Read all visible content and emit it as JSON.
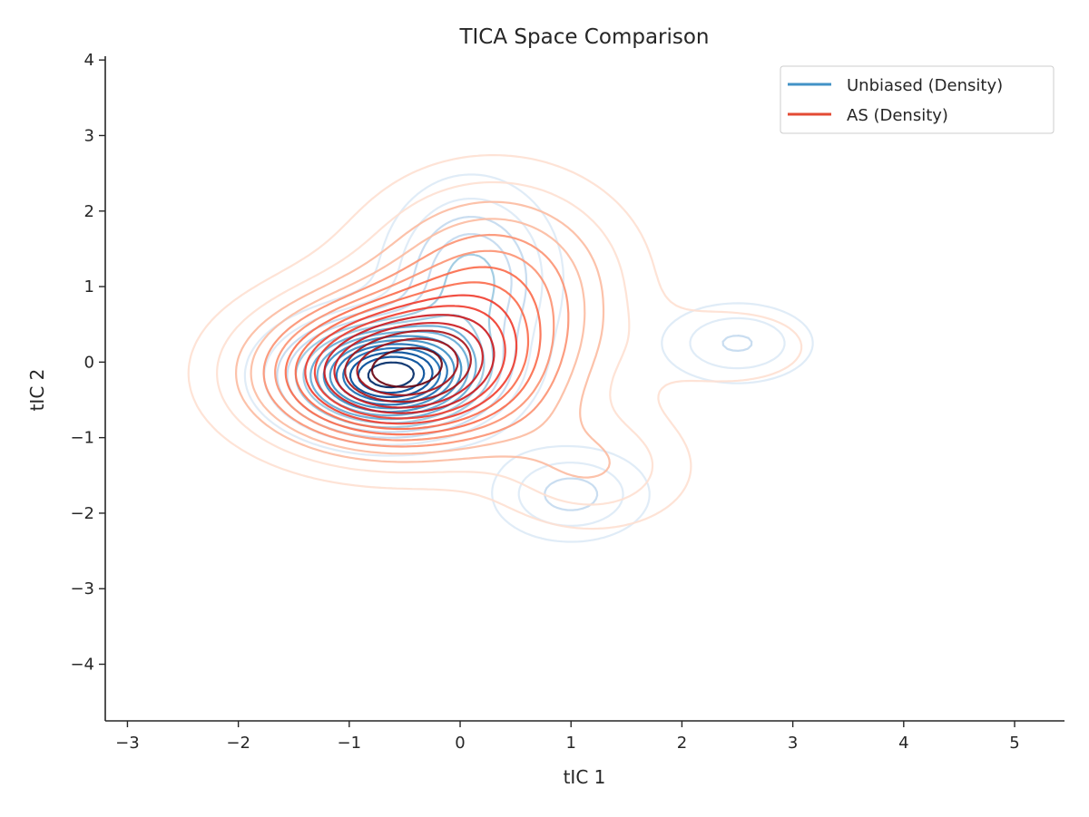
{
  "chart_data": {
    "type": "contour",
    "title": "TICA Space Comparison",
    "xlabel": "tIC 1",
    "ylabel": "tIC 2",
    "xlim": [
      -3.2,
      5.45
    ],
    "ylim": [
      -4.75,
      4.05
    ],
    "xticks": [
      -3,
      -2,
      -1,
      0,
      1,
      2,
      3,
      4,
      5
    ],
    "yticks": [
      -4,
      -3,
      -2,
      -1,
      0,
      1,
      2,
      3,
      4
    ],
    "xtick_labels": [
      "−3",
      "−2",
      "−1",
      "0",
      "1",
      "2",
      "3",
      "4",
      "5"
    ],
    "ytick_labels": [
      "−4",
      "−3",
      "−2",
      "−1",
      "0",
      "1",
      "2",
      "3",
      "4"
    ],
    "grid": false,
    "legend_position": "top-right",
    "series": [
      {
        "name": "Unbiased (Density)",
        "legend_color": "#4292c6",
        "colormap": [
          "#deebf7",
          "#c6dbef",
          "#9ecae1",
          "#6baed6",
          "#4292c6",
          "#2171b5",
          "#08519c",
          "#08306b"
        ],
        "peaks": [
          {
            "center": [
              -0.65,
              -0.18
            ],
            "sigma": [
              0.55,
              0.45
            ],
            "weight": 1.0
          },
          {
            "center": [
              0.1,
              1.1
            ],
            "sigma": [
              0.45,
              0.75
            ],
            "weight": 0.35
          },
          {
            "center": [
              1.0,
              -1.75
            ],
            "sigma": [
              0.45,
              0.4
            ],
            "weight": 0.22
          },
          {
            "center": [
              2.5,
              0.25
            ],
            "sigma": [
              0.45,
              0.35
            ],
            "weight": 0.2
          }
        ]
      },
      {
        "name": "AS (Density)",
        "legend_color": "#e34a33",
        "colormap": [
          "#fee0d2",
          "#fcbba1",
          "#fc9272",
          "#fb6a4a",
          "#ef3b2c",
          "#cb181d",
          "#a50f15",
          "#67000d"
        ],
        "peaks": [
          {
            "center": [
              -0.6,
              -0.15
            ],
            "sigma": [
              0.8,
              0.65
            ],
            "weight": 1.0
          },
          {
            "center": [
              0.3,
              1.0
            ],
            "sigma": [
              0.75,
              0.9
            ],
            "weight": 0.45
          },
          {
            "center": [
              1.2,
              -1.4
            ],
            "sigma": [
              0.6,
              0.55
            ],
            "weight": 0.2
          },
          {
            "center": [
              2.5,
              0.2
            ],
            "sigma": [
              0.55,
              0.4
            ],
            "weight": 0.12
          }
        ]
      }
    ]
  }
}
